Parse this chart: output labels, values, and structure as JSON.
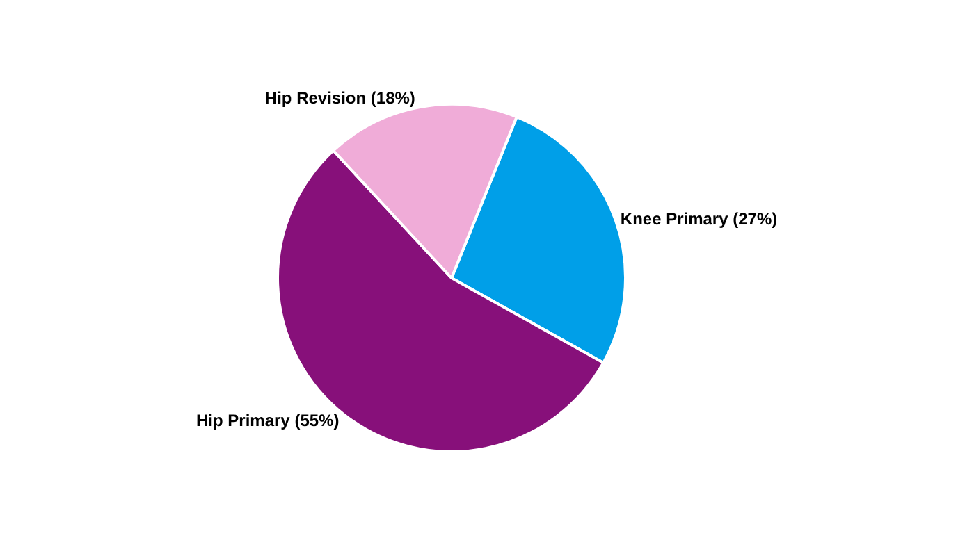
{
  "chart_data": {
    "type": "pie",
    "categories": [
      "Knee Primary (27%)",
      "Hip Primary (55%)",
      "Hip Revision (18%)"
    ],
    "values": [
      27,
      55,
      18
    ],
    "colors": [
      "#009fe8",
      "#87107a",
      "#f0acd8"
    ],
    "legend": false
  }
}
